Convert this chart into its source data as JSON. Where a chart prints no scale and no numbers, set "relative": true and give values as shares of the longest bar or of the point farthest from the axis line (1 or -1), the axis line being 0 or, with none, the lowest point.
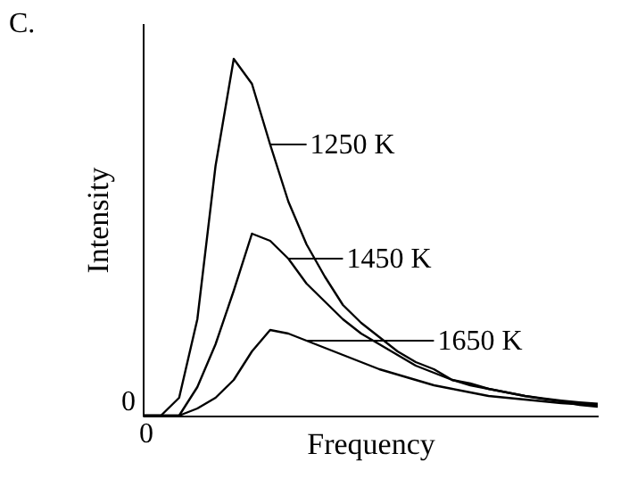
{
  "chart_data": {
    "type": "line",
    "title": "C.",
    "xlabel": "Frequency",
    "ylabel": "Intensity",
    "relative": true,
    "marker": "none",
    "line_style": "solid",
    "legend": "right",
    "annotations": [
      "0",
      "0"
    ],
    "categories": [
      null,
      null,
      null,
      null,
      null,
      null,
      null,
      null,
      null,
      null,
      null,
      null,
      null,
      null,
      null,
      null,
      null,
      null,
      null,
      null,
      null,
      null,
      null,
      null,
      null,
      null
    ],
    "series": [
      {
        "name": "1250 K",
        "color": "#000000",
        "values": [
          0,
          0,
          0.05,
          0.27,
          0.7,
          1.0,
          0.93,
          0.76,
          0.6,
          0.48,
          0.39,
          0.31,
          0.26,
          0.22,
          0.18,
          0.15,
          0.13,
          0.1,
          0.09,
          0.075,
          0.065,
          0.055,
          0.047,
          0.04,
          0.03,
          0.025
        ]
      },
      {
        "name": "1450 K",
        "color": "#000000",
        "values": [
          0,
          0,
          0,
          0.08,
          0.2,
          0.35,
          0.51,
          0.49,
          0.44,
          0.37,
          0.32,
          0.27,
          0.23,
          0.2,
          0.17,
          0.14,
          0.12,
          0.1,
          0.085,
          0.075,
          0.065,
          0.055,
          0.048,
          0.042,
          0.037,
          0.033
        ]
      },
      {
        "name": "1650 K",
        "color": "#000000",
        "values": [
          0,
          0,
          0,
          0.02,
          0.05,
          0.1,
          0.18,
          0.24,
          0.23,
          0.21,
          0.19,
          0.17,
          0.15,
          0.13,
          0.115,
          0.1,
          0.085,
          0.075,
          0.065,
          0.055,
          0.05,
          0.045,
          0.04,
          0.035,
          0.032,
          0.03
        ]
      }
    ]
  }
}
